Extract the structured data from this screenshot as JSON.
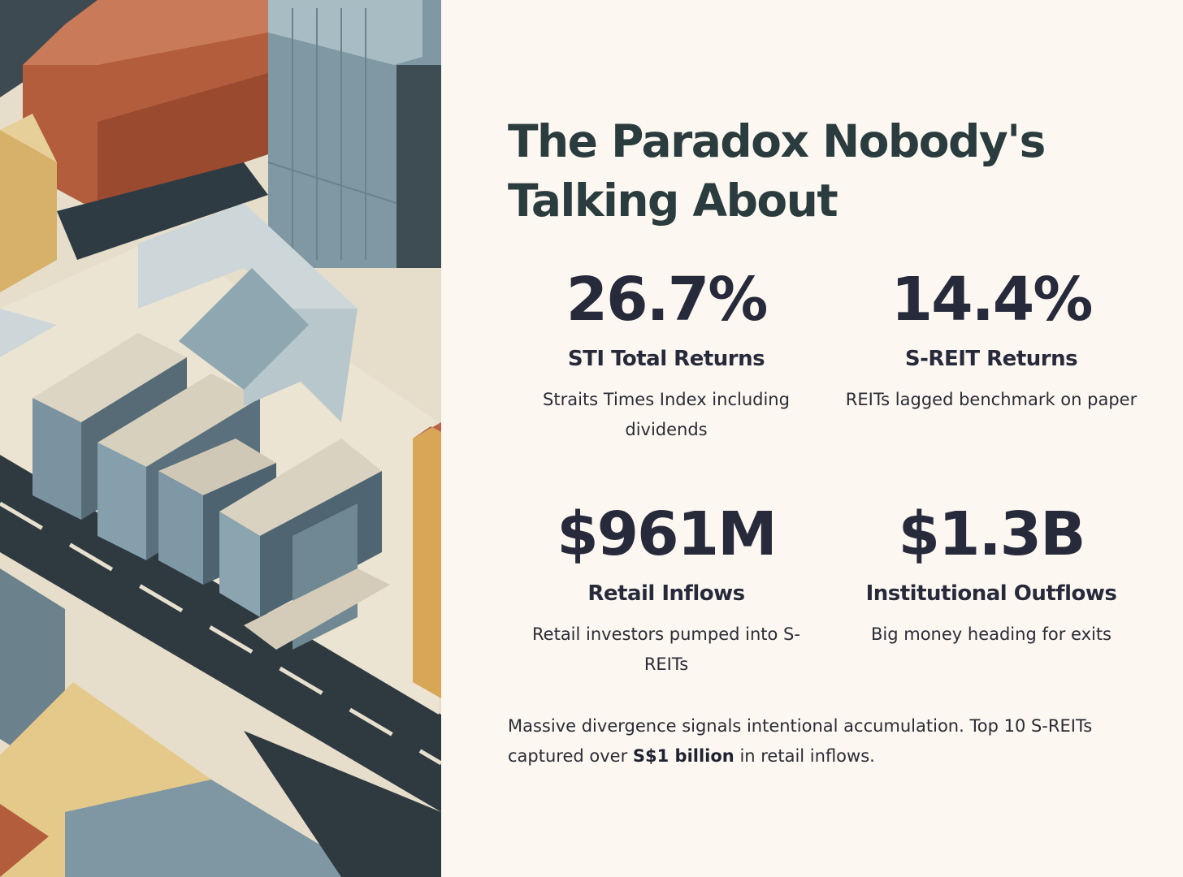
{
  "title": "The Paradox Nobody's Talking About",
  "stats": [
    {
      "value": "26.7%",
      "label": "STI Total Returns",
      "description": "Straits Times Index including dividends"
    },
    {
      "value": "14.4%",
      "label": "S-REIT Returns",
      "description": "REITs lagged benchmark on paper"
    },
    {
      "value": "$961M",
      "label": "Retail Inflows",
      "description": "Retail investors pumped into S-REITs"
    },
    {
      "value": "$1.3B",
      "label": "Institutional Outflows",
      "description": "Big money heading for exits"
    }
  ],
  "summary": {
    "before": "Massive divergence signals intentional accumulation. Top 10 S-REITs captured over ",
    "highlight": "S$1 billion",
    "after": " in retail inflows."
  },
  "colors": {
    "background": "#fdf7f1",
    "title": "#2a3c3e",
    "text": "#272a3b",
    "terracotta": "#b8603f",
    "slate": "#7f99a3",
    "sand": "#e0b664",
    "road": "#2e3a40",
    "cream": "#ece4d2"
  },
  "illustration": "isometric-city-arrows"
}
